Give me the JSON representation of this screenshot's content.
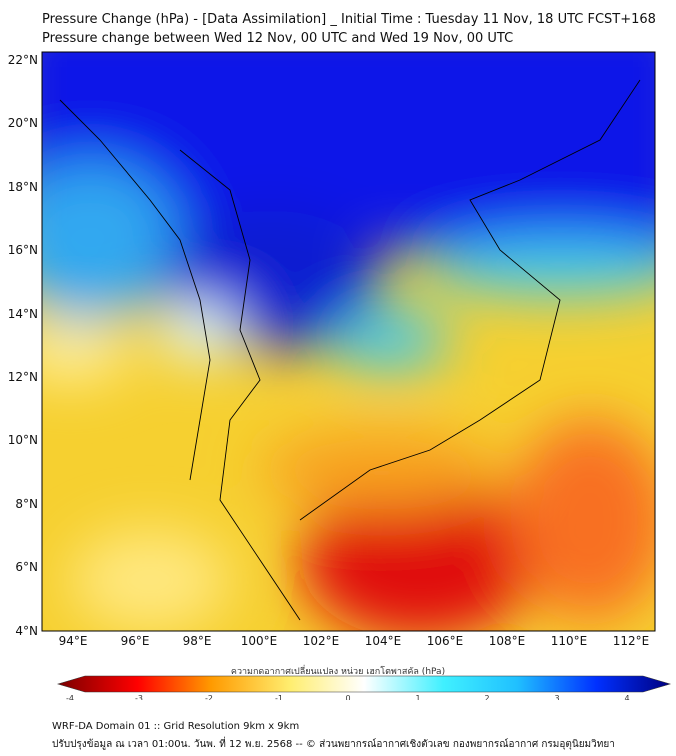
{
  "title": {
    "line1": "Pressure Change (hPa) - [Data Assimilation] _ Initial Time : Tuesday 11 Nov, 18 UTC FCST+168",
    "line2": "Pressure change between Wed 12 Nov, 00 UTC and Wed 19 Nov, 00 UTC"
  },
  "map": {
    "lat_labels": [
      "22°N",
      "20°N",
      "18°N",
      "16°N",
      "14°N",
      "12°N",
      "10°N",
      "8°N",
      "6°N",
      "4°N"
    ],
    "lon_labels": [
      "94°E",
      "96°E",
      "98°E",
      "100°E",
      "102°E",
      "104°E",
      "106°E",
      "108°E",
      "110°E",
      "112°E"
    ]
  },
  "colorbar": {
    "label": "ความกดอากาศเปลี่ยนแปลง หน่วย เฮกโตพาสคัล (hPa)",
    "ticks": [
      "-4",
      "-3",
      "-2",
      "-1",
      "0",
      "1",
      "2",
      "3",
      "4"
    ],
    "range": [
      -4,
      4
    ],
    "colors": [
      "#7a0000",
      "#ff0000",
      "#ffa000",
      "#ffee70",
      "#ffffff",
      "#40f0ff",
      "#0060ff",
      "#000080"
    ]
  },
  "footer": {
    "line1": "WRF-DA Domain 01 :: Grid Resolution 9km x 9km",
    "line2": "ปรับปรุงข้อมูล ณ เวลา 01:00น. วันพ. ที่ 12 พ.ย. 2568 -- © ส่วนพยากรณ์อากาศเชิงตัวเลข กองพยากรณ์อากาศ กรมอุตุนิยมวิทยา"
  }
}
